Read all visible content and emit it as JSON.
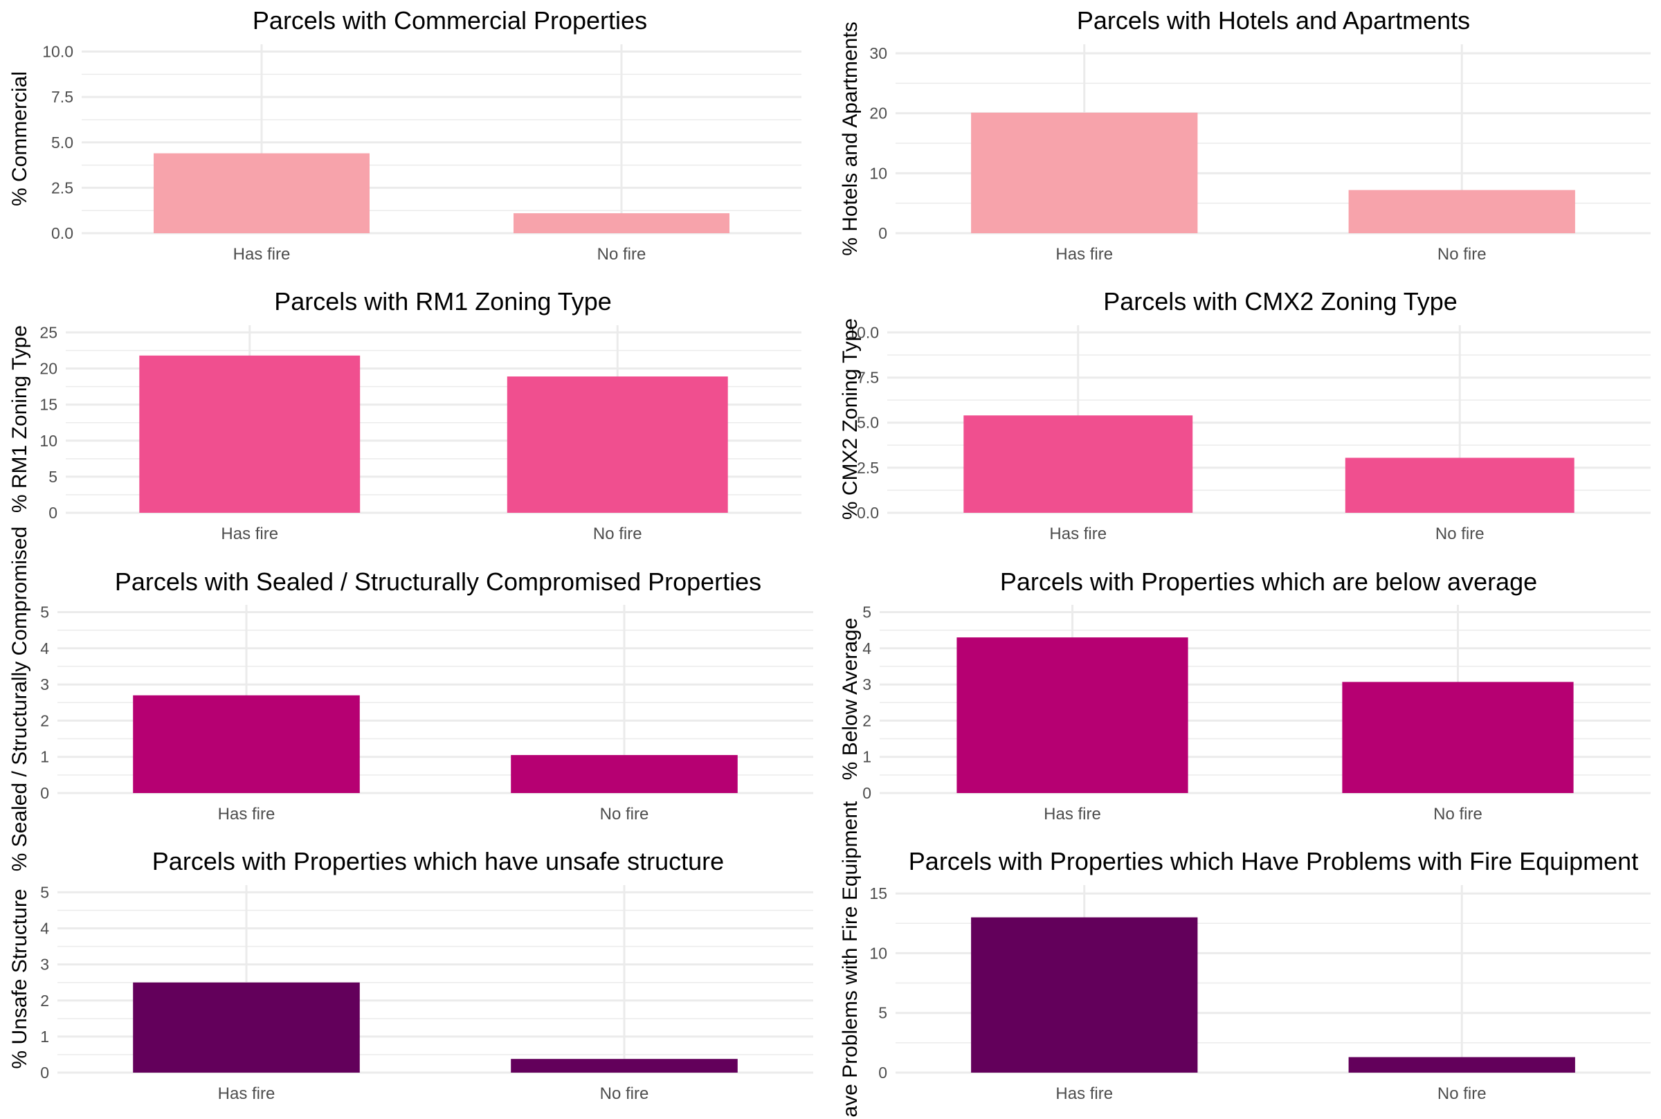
{
  "colors": {
    "grid": "#ebebeb",
    "tick_text": "#4d4d4d",
    "title_text": "#000000",
    "light_pink": "#f7a3ab",
    "pink": "#f04f8f",
    "magenta": "#b60072",
    "purple": "#63005b"
  },
  "chart_data": [
    {
      "type": "bar",
      "title": "Parcels with Commercial Properties",
      "ylabel": "% Commercial",
      "categories": [
        "Has fire",
        "No fire"
      ],
      "values": [
        4.4,
        1.1
      ],
      "ylim": [
        0,
        10.4
      ],
      "yticks": [
        0,
        2.5,
        5,
        7.5,
        10
      ],
      "ytick_labels": [
        "0.0",
        "2.5",
        "5.0",
        "7.5",
        "10.0"
      ],
      "color": "#f7a3ab",
      "grid": true
    },
    {
      "type": "bar",
      "title": "Parcels with Hotels and Apartments",
      "ylabel": "% Hotels and Apartments",
      "categories": [
        "Has fire",
        "No fire"
      ],
      "values": [
        20.1,
        7.2
      ],
      "ylim": [
        0,
        31.5
      ],
      "yticks": [
        0,
        10,
        20,
        30
      ],
      "ytick_labels": [
        "0",
        "10",
        "20",
        "30"
      ],
      "color": "#f7a3ab",
      "grid": true
    },
    {
      "type": "bar",
      "title": "Parcels with RM1 Zoning Type",
      "ylabel": "% RM1 Zoning Type",
      "categories": [
        "Has fire",
        "No fire"
      ],
      "values": [
        21.8,
        18.9
      ],
      "ylim": [
        0,
        26
      ],
      "yticks": [
        0,
        5,
        10,
        15,
        20,
        25
      ],
      "ytick_labels": [
        "0",
        "5",
        "10",
        "15",
        "20",
        "25"
      ],
      "color": "#f04f8f",
      "grid": true
    },
    {
      "type": "bar",
      "title": "Parcels with CMX2 Zoning Type",
      "ylabel": "% CMX2 Zoning Type",
      "categories": [
        "Has fire",
        "No fire"
      ],
      "values": [
        5.4,
        3.05
      ],
      "ylim": [
        0,
        10.4
      ],
      "yticks": [
        0,
        2.5,
        5,
        7.5,
        10
      ],
      "ytick_labels": [
        "0.0",
        "2.5",
        "5.0",
        "7.5",
        "10.0"
      ],
      "color": "#f04f8f",
      "grid": true
    },
    {
      "type": "bar",
      "title": "Parcels with Sealed / Structurally Compromised Properties",
      "ylabel": "% Sealed / Structurally Compromised",
      "categories": [
        "Has fire",
        "No fire"
      ],
      "values": [
        2.7,
        1.05
      ],
      "ylim": [
        0,
        5.2
      ],
      "yticks": [
        0,
        1,
        2,
        3,
        4,
        5
      ],
      "ytick_labels": [
        "0",
        "1",
        "2",
        "3",
        "4",
        "5"
      ],
      "color": "#b60072",
      "grid": true
    },
    {
      "type": "bar",
      "title": "Parcels with Properties which are below average",
      "ylabel": "% Below Average",
      "categories": [
        "Has fire",
        "No fire"
      ],
      "values": [
        4.3,
        3.07
      ],
      "ylim": [
        0,
        5.2
      ],
      "yticks": [
        0,
        1,
        2,
        3,
        4,
        5
      ],
      "ytick_labels": [
        "0",
        "1",
        "2",
        "3",
        "4",
        "5"
      ],
      "color": "#b60072",
      "grid": true
    },
    {
      "type": "bar",
      "title": "Parcels with Properties which have unsafe structure",
      "ylabel": "% Unsafe Structure",
      "categories": [
        "Has fire",
        "No fire"
      ],
      "values": [
        2.5,
        0.38
      ],
      "ylim": [
        0,
        5.2
      ],
      "yticks": [
        0,
        1,
        2,
        3,
        4,
        5
      ],
      "ytick_labels": [
        "0",
        "1",
        "2",
        "3",
        "4",
        "5"
      ],
      "color": "#63005b",
      "grid": true
    },
    {
      "type": "bar",
      "title": "Parcels with Properties which Have Problems with Fire Equipment",
      "ylabel": "% Have Problems with Fire Equipment",
      "categories": [
        "Has fire",
        "No fire"
      ],
      "values": [
        13,
        1.3
      ],
      "ylim": [
        0,
        15.7
      ],
      "yticks": [
        0,
        5,
        10,
        15
      ],
      "ytick_labels": [
        "0",
        "5",
        "10",
        "15"
      ],
      "color": "#63005b",
      "grid": true
    }
  ]
}
